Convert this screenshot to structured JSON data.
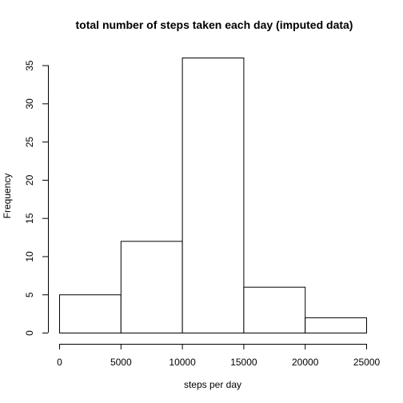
{
  "chart_data": {
    "type": "bar",
    "title": "total number of steps taken each day (imputed data)",
    "xlabel": "steps per day",
    "ylabel": "Frequency",
    "bins": [
      {
        "from": 0,
        "to": 5000,
        "count": 5
      },
      {
        "from": 5000,
        "to": 10000,
        "count": 12
      },
      {
        "from": 10000,
        "to": 15000,
        "count": 36
      },
      {
        "from": 15000,
        "to": 20000,
        "count": 6
      },
      {
        "from": 20000,
        "to": 25000,
        "count": 2
      }
    ],
    "xlim": [
      0,
      25000
    ],
    "ylim": [
      0,
      36
    ],
    "x_ticks": [
      0,
      5000,
      10000,
      15000,
      20000,
      25000
    ],
    "y_ticks": [
      0,
      5,
      10,
      15,
      20,
      25,
      30,
      35
    ],
    "grid": false,
    "legend": "none"
  }
}
